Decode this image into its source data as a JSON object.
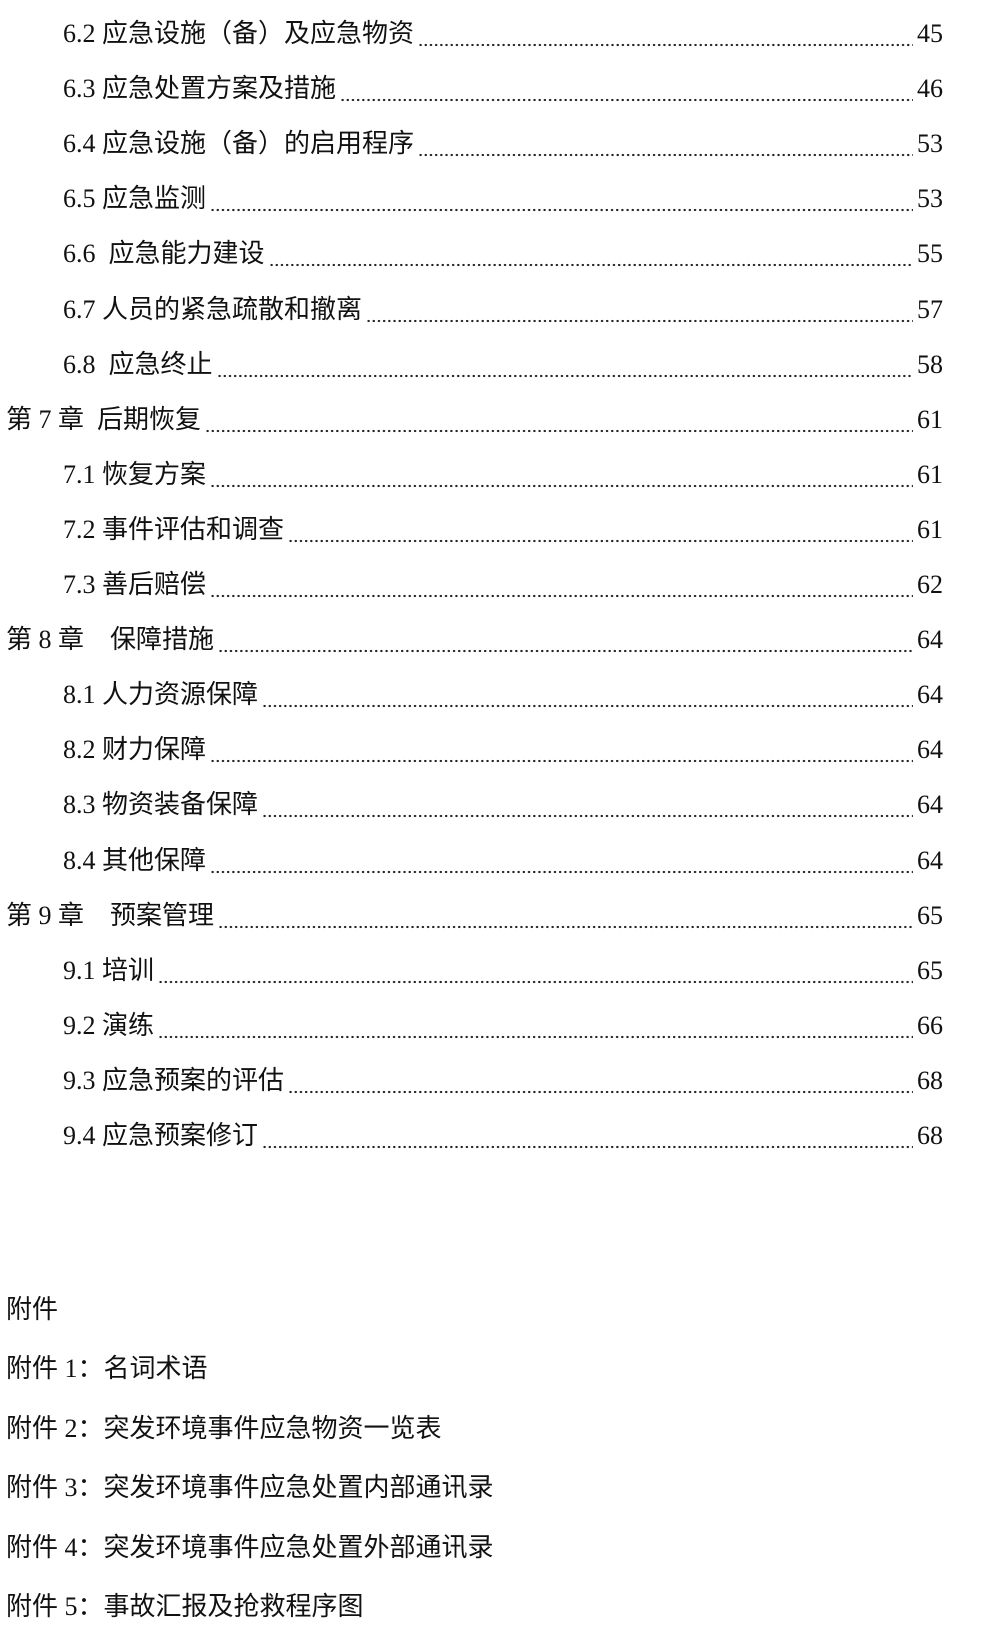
{
  "toc": [
    {
      "level": 2,
      "title": "6.2 应急设施（备）及应急物资",
      "page": "45"
    },
    {
      "level": 2,
      "title": "6.3 应急处置方案及措施",
      "page": "46"
    },
    {
      "level": 2,
      "title": "6.4 应急设施（备）的启用程序",
      "page": "53"
    },
    {
      "level": 2,
      "title": "6.5 应急监测",
      "page": "53"
    },
    {
      "level": 2,
      "title": "6.6  应急能力建设",
      "page": "55"
    },
    {
      "level": 2,
      "title": "6.7 人员的紧急疏散和撤离",
      "page": "57"
    },
    {
      "level": 2,
      "title": "6.8  应急终止",
      "page": "58"
    },
    {
      "level": 1,
      "title": "第 7 章  后期恢复",
      "page": "61"
    },
    {
      "level": 2,
      "title": "7.1 恢复方案",
      "page": "61"
    },
    {
      "level": 2,
      "title": "7.2 事件评估和调查",
      "page": "61"
    },
    {
      "level": 2,
      "title": "7.3 善后赔偿",
      "page": "62"
    },
    {
      "level": 1,
      "title": "第 8 章    保障措施",
      "page": "64"
    },
    {
      "level": 2,
      "title": "8.1 人力资源保障",
      "page": "64"
    },
    {
      "level": 2,
      "title": "8.2 财力保障",
      "page": "64"
    },
    {
      "level": 2,
      "title": "8.3 物资装备保障",
      "page": "64"
    },
    {
      "level": 2,
      "title": "8.4 其他保障",
      "page": "64"
    },
    {
      "level": 1,
      "title": "第 9 章    预案管理",
      "page": "65"
    },
    {
      "level": 2,
      "title": "9.1 培训",
      "page": "65"
    },
    {
      "level": 2,
      "title": "9.2 演练",
      "page": "66"
    },
    {
      "level": 2,
      "title": "9.3 应急预案的评估",
      "page": "68"
    },
    {
      "level": 2,
      "title": "9.4 应急预案修订",
      "page": "68"
    }
  ],
  "annex": {
    "heading": "附件",
    "items": [
      "附件 1：名词术语",
      "附件 2：突发环境事件应急物资一览表",
      "附件 3：突发环境事件应急处置内部通讯录",
      "附件 4：突发环境事件应急处置外部通讯录",
      "附件 5：事故汇报及抢救程序图"
    ]
  }
}
